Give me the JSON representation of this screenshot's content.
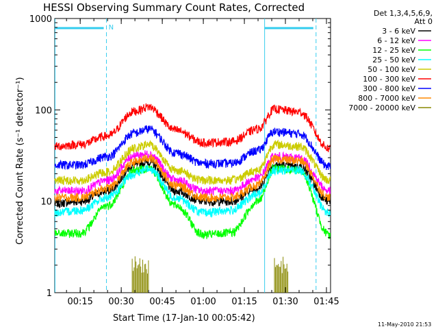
{
  "chart_data": {
    "type": "line",
    "title": "HESSI Observing Summary Count Rates, Corrected",
    "xlabel": "Start Time (17-Jan-10 00:05:42)",
    "ylabel": "Corrected Count Rate (s⁻¹ detector⁻¹)",
    "x_tick_labels": [
      "00:15",
      "00:30",
      "00:45",
      "01:00",
      "01:15",
      "01:30",
      "01:45"
    ],
    "x_tick_minutes": [
      15,
      30,
      45,
      60,
      75,
      90,
      105
    ],
    "xlim_minutes": [
      5.7,
      106.5
    ],
    "y_scale": "log",
    "ylim": [
      1,
      1000
    ],
    "y_tick_labels": [
      "1",
      "10",
      "100",
      "1000"
    ],
    "y_tick_values": [
      1,
      10,
      100,
      1000
    ],
    "legend_header": [
      "Det 1,3,4,5,6,9,",
      "Att 0"
    ],
    "legend_position": "right",
    "timestamp": "11-May-2010 21:53",
    "marker_label": "N",
    "vertical_markers_minutes": [
      5.8,
      24.6,
      82.4,
      101.2
    ],
    "night_periods_minutes": [
      [
        5.8,
        24.6
      ],
      [
        82.4,
        101.2
      ]
    ],
    "series": [
      {
        "name": "3 - 6 keV",
        "color": "#000000",
        "values": [
          9.5,
          10,
          13,
          25,
          27,
          13,
          10,
          10,
          14,
          25,
          24,
          10
        ]
      },
      {
        "name": "6 - 12 keV",
        "color": "#ff00ff",
        "values": [
          13,
          13,
          17,
          32,
          33,
          17,
          13,
          13,
          18,
          31,
          30,
          13
        ]
      },
      {
        "name": "12 - 25 keV",
        "color": "#00ff00",
        "values": [
          4.4,
          4.5,
          9,
          22,
          23,
          9,
          4.3,
          4.5,
          10,
          23,
          22,
          4.3
        ]
      },
      {
        "name": "25 - 50 keV",
        "color": "#00ffff",
        "values": [
          7.5,
          8,
          11,
          20,
          23,
          11,
          7.5,
          8,
          12,
          22,
          22,
          7.5
        ]
      },
      {
        "name": "50 - 100 keV",
        "color": "#cccc00",
        "values": [
          17,
          17,
          21,
          38,
          42,
          22,
          17,
          17,
          22,
          42,
          40,
          17
        ]
      },
      {
        "name": "100 - 300 keV",
        "color": "#ff0000",
        "values": [
          40,
          42,
          52,
          97,
          108,
          60,
          44,
          45,
          62,
          102,
          95,
          38
        ]
      },
      {
        "name": "300 - 800 keV",
        "color": "#0000ff",
        "values": [
          25,
          25,
          31,
          56,
          62,
          34,
          26,
          26,
          36,
          58,
          55,
          24
        ]
      },
      {
        "name": "800 - 7000 keV",
        "color": "#ff8800",
        "values": [
          11,
          11,
          14,
          27,
          30,
          15,
          11,
          11,
          15,
          29,
          28,
          11
        ]
      },
      {
        "name": "7000 - 20000 keV",
        "color": "#888800",
        "values": [
          null,
          null,
          null,
          2,
          2,
          null,
          null,
          null,
          null,
          2,
          null,
          null
        ]
      }
    ],
    "x_minutes": [
      5.7,
      15,
      25,
      35,
      40,
      50,
      60,
      70,
      80,
      86,
      95,
      106
    ]
  }
}
